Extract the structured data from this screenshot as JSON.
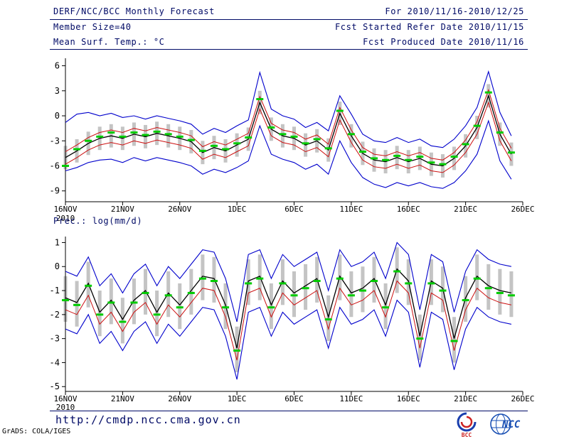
{
  "header": {
    "title": "DERF/NCC/BCC Monthly Forecast",
    "for_range": "For 2010/11/16-2010/12/25",
    "member_size": "Member Size=40",
    "fcst_started": "Fcst Started Refer Date 2010/11/15",
    "fcst_produced": "Fcst Produced Date 2010/11/16"
  },
  "footer": {
    "url": "http://cmdp.ncc.cma.gov.cn",
    "credit": "GrADS: COLA/IGES",
    "bcc_label": "BCC",
    "ncc_label": "NCC"
  },
  "colors": {
    "header_text": "#000a66",
    "axis": "#000000",
    "spread_bar": "#c4c4c4",
    "obs_dash": "#00cc00",
    "envelope_blue": "#0000cc",
    "quartile_red": "#cc1111",
    "mean_black": "#000000"
  },
  "chart_data": [
    {
      "type": "line",
      "title": "Mean Surf. Temp.: °C",
      "ylabel": "",
      "ylim": [
        -10.3,
        6.9
      ],
      "yticks": [
        6,
        3,
        0,
        -3,
        -6,
        -9
      ],
      "axis_days": 40,
      "x_tick_days": [
        0,
        5,
        10,
        15,
        20,
        25,
        30,
        35,
        40
      ],
      "x_tick_labels": [
        "16NOV",
        "21NOV",
        "26NOV",
        "1DEC",
        "6DEC",
        "11DEC",
        "16DEC",
        "21DEC",
        "26DEC"
      ],
      "x_year_label": "2010",
      "grid": false,
      "legend": "none",
      "bars": {
        "name": "ensemble-spread-bar",
        "color": "#c4c4c4",
        "high": [
          -3.6,
          -2.8,
          -1.9,
          -1.3,
          -1.0,
          -1.3,
          -0.8,
          -1.1,
          -0.7,
          -1.0,
          -1.3,
          -1.7,
          -3.0,
          -2.4,
          -2.8,
          -2.1,
          -1.4,
          3.0,
          -0.2,
          -1.0,
          -1.3,
          -2.1,
          -1.6,
          -2.7,
          1.7,
          -1.0,
          -3.1,
          -3.9,
          -4.1,
          -3.6,
          -4.1,
          -3.7,
          -4.4,
          -4.6,
          -3.7,
          -2.2,
          0.0,
          3.8,
          -0.8,
          -3.2
        ],
        "low": [
          -6.4,
          -5.6,
          -4.7,
          -4.1,
          -3.8,
          -4.1,
          -3.6,
          -3.9,
          -3.5,
          -3.8,
          -4.1,
          -4.5,
          -5.8,
          -5.2,
          -5.6,
          -4.9,
          -4.2,
          0.2,
          -3.0,
          -3.8,
          -4.1,
          -4.9,
          -4.4,
          -5.5,
          -1.1,
          -3.8,
          -5.9,
          -6.7,
          -6.9,
          -6.4,
          -6.9,
          -6.5,
          -7.2,
          -7.4,
          -6.5,
          -5.0,
          -2.8,
          1.0,
          -3.6,
          -6.0
        ]
      },
      "series": [
        {
          "name": "ensemble-max",
          "color": "#0000cc",
          "width": 1.1,
          "values": [
            -0.8,
            0.2,
            0.4,
            0.0,
            0.3,
            -0.2,
            0.0,
            -0.4,
            0.0,
            -0.3,
            -0.6,
            -1.0,
            -2.2,
            -1.5,
            -2.0,
            -1.2,
            -0.5,
            5.2,
            0.8,
            0.0,
            -0.4,
            -1.4,
            -0.8,
            -1.8,
            2.4,
            0.2,
            -2.2,
            -3.0,
            -3.2,
            -2.6,
            -3.2,
            -2.8,
            -3.6,
            -3.8,
            -2.8,
            -1.2,
            1.0,
            5.3,
            0.4,
            -2.4
          ]
        },
        {
          "name": "ensemble-min",
          "color": "#0000cc",
          "width": 1.1,
          "values": [
            -6.6,
            -6.2,
            -5.6,
            -5.3,
            -5.2,
            -5.6,
            -5.0,
            -5.4,
            -5.0,
            -5.3,
            -5.6,
            -6.0,
            -7.0,
            -6.4,
            -6.8,
            -6.2,
            -5.4,
            -1.2,
            -4.6,
            -5.2,
            -5.6,
            -6.4,
            -5.8,
            -7.0,
            -3.0,
            -5.6,
            -7.4,
            -8.2,
            -8.6,
            -8.0,
            -8.4,
            -8.0,
            -8.5,
            -8.7,
            -8.0,
            -6.6,
            -4.6,
            -0.6,
            -5.4,
            -7.6
          ]
        },
        {
          "name": "upper-quartile",
          "color": "#cc1111",
          "width": 1,
          "values": [
            -4.3,
            -3.5,
            -2.6,
            -2.0,
            -1.7,
            -2.0,
            -1.5,
            -1.8,
            -1.4,
            -1.7,
            -2.0,
            -2.4,
            -3.7,
            -3.1,
            -3.5,
            -2.8,
            -2.1,
            2.3,
            -0.9,
            -1.7,
            -2.0,
            -2.8,
            -2.3,
            -3.4,
            1.0,
            -1.7,
            -3.8,
            -4.6,
            -4.8,
            -4.3,
            -4.8,
            -4.4,
            -5.1,
            -5.3,
            -4.4,
            -2.9,
            -0.7,
            3.1,
            -1.5,
            -3.9
          ]
        },
        {
          "name": "lower-quartile",
          "color": "#cc1111",
          "width": 1,
          "values": [
            -5.8,
            -5.0,
            -4.1,
            -3.5,
            -3.2,
            -3.5,
            -3.0,
            -3.3,
            -2.9,
            -3.2,
            -3.5,
            -3.9,
            -5.2,
            -4.6,
            -5.0,
            -4.3,
            -3.6,
            0.8,
            -2.4,
            -3.2,
            -3.5,
            -4.3,
            -3.8,
            -4.9,
            -0.5,
            -3.2,
            -5.3,
            -6.1,
            -6.3,
            -5.8,
            -6.3,
            -5.9,
            -6.6,
            -6.8,
            -5.9,
            -4.4,
            -2.2,
            1.6,
            -3.0,
            -5.4
          ]
        },
        {
          "name": "ensemble-mean",
          "color": "#000000",
          "width": 1.3,
          "values": [
            -5.0,
            -4.2,
            -3.3,
            -2.7,
            -2.4,
            -2.7,
            -2.2,
            -2.5,
            -2.1,
            -2.4,
            -2.7,
            -3.1,
            -4.4,
            -3.8,
            -4.2,
            -3.5,
            -2.8,
            1.6,
            -1.6,
            -2.4,
            -2.7,
            -3.5,
            -3.0,
            -4.1,
            0.3,
            -2.4,
            -4.5,
            -5.3,
            -5.5,
            -5.0,
            -5.5,
            -5.1,
            -5.8,
            -6.0,
            -5.1,
            -3.6,
            -1.4,
            2.4,
            -2.2,
            -4.6
          ]
        }
      ],
      "markers": {
        "name": "daily-median-dash",
        "color": "#00cc00",
        "values": [
          -6.0,
          -4.0,
          -3.0,
          -2.5,
          -2.0,
          -2.5,
          -2.0,
          -2.3,
          -1.9,
          -2.2,
          -2.5,
          -2.9,
          -4.2,
          -3.6,
          -4.0,
          -3.3,
          -2.6,
          2.0,
          -1.4,
          -2.2,
          -2.5,
          -3.3,
          -2.8,
          -3.9,
          0.6,
          -2.2,
          -4.3,
          -5.1,
          -5.3,
          -4.8,
          -5.3,
          -4.9,
          -5.6,
          -5.8,
          -4.9,
          -3.4,
          -1.2,
          2.8,
          -2.0,
          -4.4
        ]
      }
    },
    {
      "type": "line",
      "title": "Prec.: log(mm/d)",
      "ylabel": "",
      "ylim": [
        -5.2,
        1.25
      ],
      "yticks": [
        1,
        0,
        -1,
        -2,
        -3,
        -4,
        -5
      ],
      "axis_days": 40,
      "x_tick_days": [
        0,
        5,
        10,
        15,
        20,
        25,
        30,
        35,
        40
      ],
      "x_tick_labels": [
        "16NOV",
        "21NOV",
        "26NOV",
        "1DEC",
        "6DEC",
        "11DEC",
        "16DEC",
        "21DEC",
        "26DEC"
      ],
      "x_year_label": "2010",
      "grid": false,
      "legend": "none",
      "bars": {
        "name": "ensemble-spread-bar",
        "color": "#c4c4c4",
        "high": [
          -0.4,
          -0.6,
          0.2,
          -1.0,
          -0.5,
          -1.3,
          -0.5,
          -0.1,
          -1.0,
          -0.2,
          -0.7,
          -0.1,
          0.5,
          0.4,
          -0.7,
          -2.5,
          0.3,
          0.5,
          -0.7,
          0.3,
          -0.2,
          0.1,
          0.4,
          -1.2,
          0.5,
          -0.2,
          0.0,
          0.4,
          -0.7,
          0.8,
          0.3,
          -2.0,
          0.3,
          0.0,
          -2.1,
          -0.4,
          0.5,
          0.1,
          -0.1,
          -0.2
        ],
        "low": [
          -2.3,
          -2.5,
          -1.7,
          -2.9,
          -2.4,
          -3.2,
          -2.4,
          -2.0,
          -2.9,
          -2.1,
          -2.6,
          -2.0,
          -1.4,
          -1.5,
          -2.6,
          -4.4,
          -1.6,
          -1.4,
          -2.6,
          -1.6,
          -2.1,
          -1.8,
          -1.5,
          -3.1,
          -1.4,
          -2.1,
          -1.9,
          -1.5,
          -2.6,
          -1.1,
          -1.6,
          -3.9,
          -1.6,
          -1.9,
          -4.0,
          -2.3,
          -1.4,
          -1.8,
          -2.0,
          -2.1
        ]
      },
      "series": [
        {
          "name": "ensemble-max",
          "color": "#0000cc",
          "width": 1.1,
          "values": [
            -0.2,
            -0.4,
            0.4,
            -0.8,
            -0.3,
            -1.1,
            -0.3,
            0.1,
            -0.8,
            0.0,
            -0.5,
            0.1,
            0.7,
            0.6,
            -0.5,
            -2.3,
            0.5,
            0.7,
            -0.5,
            0.5,
            0.0,
            0.3,
            0.6,
            -1.0,
            0.7,
            0.0,
            0.2,
            0.6,
            -0.5,
            1.0,
            0.5,
            -1.8,
            0.5,
            0.2,
            -1.9,
            -0.2,
            0.7,
            0.3,
            0.1,
            0.0
          ]
        },
        {
          "name": "ensemble-min",
          "color": "#0000cc",
          "width": 1.1,
          "values": [
            -2.6,
            -2.8,
            -2.0,
            -3.2,
            -2.7,
            -3.5,
            -2.7,
            -2.3,
            -3.2,
            -2.4,
            -2.9,
            -2.3,
            -1.7,
            -1.8,
            -2.9,
            -4.7,
            -1.9,
            -1.7,
            -2.9,
            -1.9,
            -2.4,
            -2.1,
            -1.8,
            -3.4,
            -1.7,
            -2.4,
            -2.2,
            -1.8,
            -2.9,
            -1.4,
            -1.9,
            -4.2,
            -1.9,
            -2.2,
            -4.3,
            -2.6,
            -1.7,
            -2.1,
            -2.3,
            -2.4
          ]
        },
        {
          "name": "lower-quartile",
          "color": "#cc1111",
          "width": 1,
          "values": [
            -1.8,
            -2.0,
            -1.2,
            -2.4,
            -1.9,
            -2.7,
            -1.9,
            -1.5,
            -2.4,
            -1.6,
            -2.1,
            -1.5,
            -0.9,
            -1.0,
            -2.1,
            -3.9,
            -1.1,
            -0.9,
            -2.1,
            -1.1,
            -1.6,
            -1.3,
            -1.0,
            -2.6,
            -0.9,
            -1.6,
            -1.4,
            -1.0,
            -2.1,
            -0.6,
            -1.1,
            -3.4,
            -1.1,
            -1.4,
            -3.5,
            -1.8,
            -0.9,
            -1.3,
            -1.5,
            -1.6
          ]
        },
        {
          "name": "ensemble-mean",
          "color": "#000000",
          "width": 1.3,
          "values": [
            -1.3,
            -1.5,
            -0.7,
            -1.9,
            -1.4,
            -2.2,
            -1.4,
            -1.0,
            -1.9,
            -1.1,
            -1.6,
            -1.0,
            -0.4,
            -0.5,
            -1.6,
            -3.4,
            -0.6,
            -0.4,
            -1.6,
            -0.6,
            -1.1,
            -0.8,
            -0.5,
            -2.1,
            -0.4,
            -1.1,
            -0.9,
            -0.5,
            -1.6,
            -0.1,
            -0.6,
            -2.9,
            -0.6,
            -0.9,
            -3.0,
            -1.3,
            -0.4,
            -0.8,
            -1.0,
            -1.1
          ]
        }
      ],
      "markers": {
        "name": "daily-median-dash",
        "color": "#00cc00",
        "values": [
          -1.4,
          -1.6,
          -0.8,
          -2.0,
          -1.5,
          -2.3,
          -1.5,
          -1.1,
          -2.0,
          -1.2,
          -1.7,
          -1.1,
          -0.5,
          -0.6,
          -1.7,
          -3.5,
          -0.7,
          -0.5,
          -1.7,
          -0.7,
          -1.2,
          -0.9,
          -0.6,
          -2.2,
          -0.5,
          -1.2,
          -1.0,
          -0.6,
          -1.7,
          -0.2,
          -0.7,
          -3.0,
          -0.7,
          -1.0,
          -3.1,
          -1.4,
          -0.5,
          -0.9,
          -1.1,
          -1.2
        ]
      }
    }
  ]
}
